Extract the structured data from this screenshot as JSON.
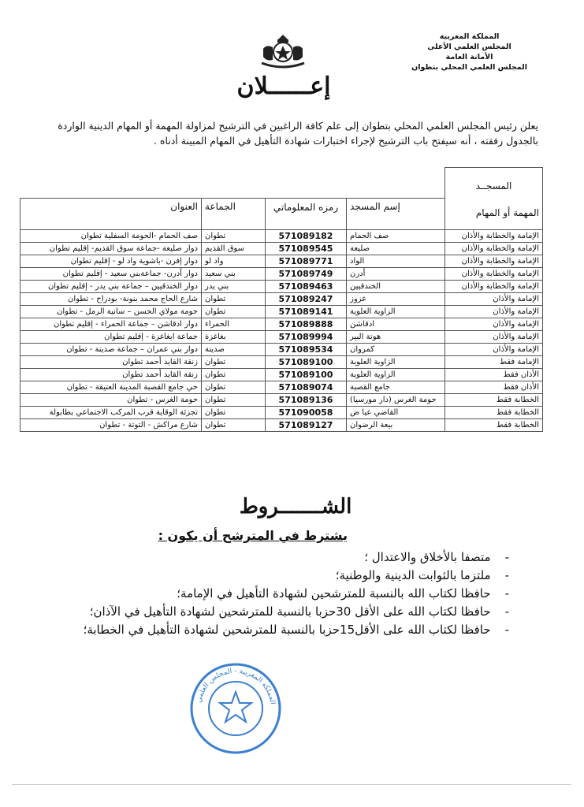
{
  "header": {
    "lines": [
      "المملكة المغربية",
      "المجلس العلمي الأعلى",
      "الأمانة العامة",
      "المجلس العلمي المحلي بتطوان"
    ]
  },
  "title": "إعــــــلان",
  "intro": "يعلن رئيس المجلس العلمي المحلي بتطوان إلى علم كافة الراغبين في الترشيح لمزاولة المهمة أو المهام الدينية الواردة بالجدول رفقته ، أنه سيفتح باب الترشيح لإجراء اختبارات شهادة التأهيل في المهام المبينة أدناه .",
  "table": {
    "top_header": "المسجــد",
    "headers": [
      "المهمة أو المهام",
      "إسم المسجد",
      "رمزه المعلوماتي",
      "الجماعة",
      "العنوان"
    ],
    "rows": [
      [
        "الإمامة والخطابة والأذان",
        "صف الحمام",
        "571089182",
        "تطوان",
        "صف الحمام -الحومة السفلية تطوان"
      ],
      [
        "الإمامة والخطابة والأذان",
        "صليعة",
        "571089545",
        "سوق القديم",
        "دوار صليعة -جماعة سوق القديم- إقليم تطوان"
      ],
      [
        "الإمامة والخطابة والأذان",
        "الواد",
        "571089771",
        "واد لو",
        "دوار إفرن -باشوية واد لو - إقليم تطوان"
      ],
      [
        "الإمامة والخطابة والأذان",
        "أدرن",
        "571089749",
        "بني سعيد",
        "دوار أدرن- جماعةبني سعيد - إقليم تطوان"
      ],
      [
        "الإمامة والخطابة والأذان",
        "الخندقيين",
        "571089463",
        "بني يدر",
        "دوار الخندقيين – جماعة بني يدر - إقليم تطوان"
      ],
      [
        "الإمامة والأذان",
        "عزوز",
        "571089247",
        "تطوان",
        "شارع الحاج محمد بنونة- بودراح - تطوان"
      ],
      [
        "الإمامة والأذان",
        "الزاوية العلوية",
        "571089141",
        "تطوان",
        "حومة مولاي الحسن – سانية الرمل - تطوان"
      ],
      [
        "الإمامة والأذان",
        "ادقاشن",
        "571089888",
        "الحمراء",
        "دوار ادقاشن – جماعة الحمراء - إقليم تطوان"
      ],
      [
        "الإمامة والأذان",
        "هوتة البير",
        "571089994",
        "بغاغزة",
        "جماعة ابغاغزة - إقليم تطوان"
      ],
      [
        "الإمامة والأذان",
        "كمروان",
        "571089534",
        "صدينة",
        "دوار بني عمران – جماعة صدينة - تطوان"
      ],
      [
        "الإمامة فقط",
        "الزاوية العلوية",
        "571089100",
        "تطوان",
        "زنقة القايد أحمد تطوان"
      ],
      [
        "الأذان فقط",
        "الزاوية العلوية",
        "571089100",
        "تطوان",
        "زنقة القايد أحمد تطوان"
      ],
      [
        "الأذان فقط",
        "جامع القصبة",
        "571089074",
        "تطوان",
        "حي جامع القصبة المدينة العتيقة - تطوان"
      ],
      [
        "الخطابة فقط",
        "حومة الغرس (دار مورسيا)",
        "571089136",
        "تطوان",
        "حومة الغرس - تطوان"
      ],
      [
        "الخطابة فقط",
        "القاضي عيا ض",
        "571090058",
        "تطوان",
        "تجزئة الوقاية قرب المركب الاجتماعي بطابولة"
      ],
      [
        "الخطابة فقط",
        "بيعة الرضوان",
        "571089127",
        "تطوان",
        "شارع مراكش - التوتة - تطوان"
      ]
    ]
  },
  "conditions": {
    "title": "الشـــــــروط",
    "subtitle": "يشترط في المترشح أن يكون :",
    "items": [
      "متصفا بالأخلاق والاعتدال ؛",
      "ملتزما بالثوابت الدينية والوطنية؛",
      "حافظا لكتاب الله بالنسبة للمترشحين لشهادة التأهيل في الإمامة؛",
      "حافظا لكتاب الله على الأقل 30حزبا بالنسبة للمترشحين لشهادة التأهيل في الآذان؛",
      "حافظا لكتاب الله على الأقل15حزبا بالنسبة للمترشحين لشهادة التأهيل في الخطابة؛"
    ]
  },
  "stamp": {
    "text": "المملكة المغربية - المجلس العلمي المحلي",
    "color": "#3b7fd0"
  }
}
